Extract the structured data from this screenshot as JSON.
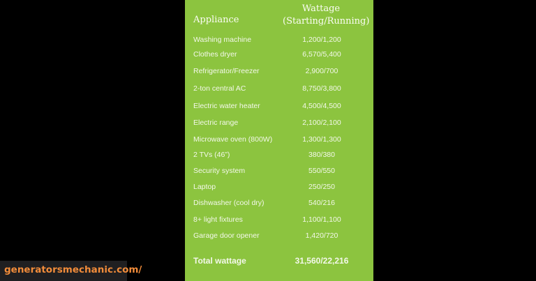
{
  "table": {
    "header": {
      "appliance": "Appliance",
      "wattage_line1": "Wattage",
      "wattage_line2": "(Starting/Running)"
    },
    "rows": [
      {
        "appliance": "Washing machine",
        "wattage": "1,200/1,200"
      },
      {
        "appliance": "Clothes dryer",
        "wattage": "6,570/5,400"
      },
      {
        "appliance": "Refrigerator/Freezer",
        "wattage": "2,900/700"
      },
      {
        "appliance": "2-ton central AC",
        "wattage": "8,750/3,800"
      },
      {
        "appliance": "Electric water heater",
        "wattage": "4,500/4,500"
      },
      {
        "appliance": "Electric range",
        "wattage": "2,100/2,100"
      },
      {
        "appliance": "Microwave oven (800W)",
        "wattage": "1,300/1,300"
      },
      {
        "appliance": "2 TVs (46”)",
        "wattage": "380/380"
      },
      {
        "appliance": "Security system",
        "wattage": "550/550"
      },
      {
        "appliance": "Laptop",
        "wattage": "250/250"
      },
      {
        "appliance": "Dishwasher (cool dry)",
        "wattage": "540/216"
      },
      {
        "appliance": "8+ light fixtures",
        "wattage": "1,100/1,100"
      },
      {
        "appliance": "Garage door opener",
        "wattage": "1,420/720"
      }
    ],
    "total": {
      "label": "Total wattage",
      "wattage": "31,560/22,216"
    }
  },
  "watermark": "generatorsmechanic.com/",
  "colors": {
    "panel": "#8cc43f",
    "background": "#000000",
    "watermark_text": "#f28c3a"
  }
}
